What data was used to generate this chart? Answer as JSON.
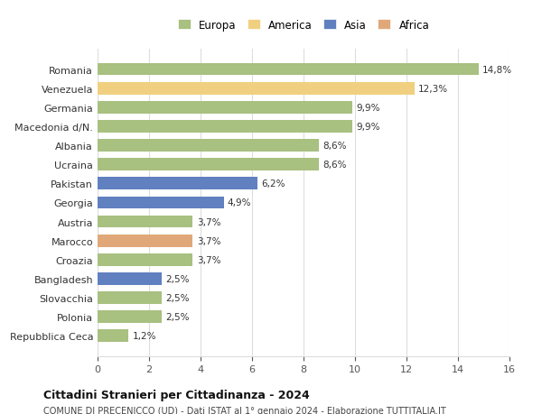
{
  "categories": [
    "Repubblica Ceca",
    "Polonia",
    "Slovacchia",
    "Bangladesh",
    "Croazia",
    "Marocco",
    "Austria",
    "Georgia",
    "Pakistan",
    "Ucraina",
    "Albania",
    "Macedonia d/N.",
    "Germania",
    "Venezuela",
    "Romania"
  ],
  "values": [
    1.2,
    2.5,
    2.5,
    2.5,
    3.7,
    3.7,
    3.7,
    4.9,
    6.2,
    8.6,
    8.6,
    9.9,
    9.9,
    12.3,
    14.8
  ],
  "continents": [
    "Europa",
    "Europa",
    "Europa",
    "Asia",
    "Europa",
    "Africa",
    "Europa",
    "Asia",
    "Asia",
    "Europa",
    "Europa",
    "Europa",
    "Europa",
    "America",
    "Europa"
  ],
  "colors": {
    "Europa": "#a8c080",
    "America": "#f0d080",
    "Asia": "#6080c0",
    "Africa": "#e0a878"
  },
  "legend_order": [
    "Europa",
    "America",
    "Asia",
    "Africa"
  ],
  "xlim": [
    0,
    16
  ],
  "xticks": [
    0,
    2,
    4,
    6,
    8,
    10,
    12,
    14,
    16
  ],
  "title": "Cittadini Stranieri per Cittadinanza - 2024",
  "subtitle": "COMUNE DI PRECENICCO (UD) - Dati ISTAT al 1° gennaio 2024 - Elaborazione TUTTITALIA.IT",
  "bg_color": "#ffffff",
  "grid_color": "#dddddd"
}
